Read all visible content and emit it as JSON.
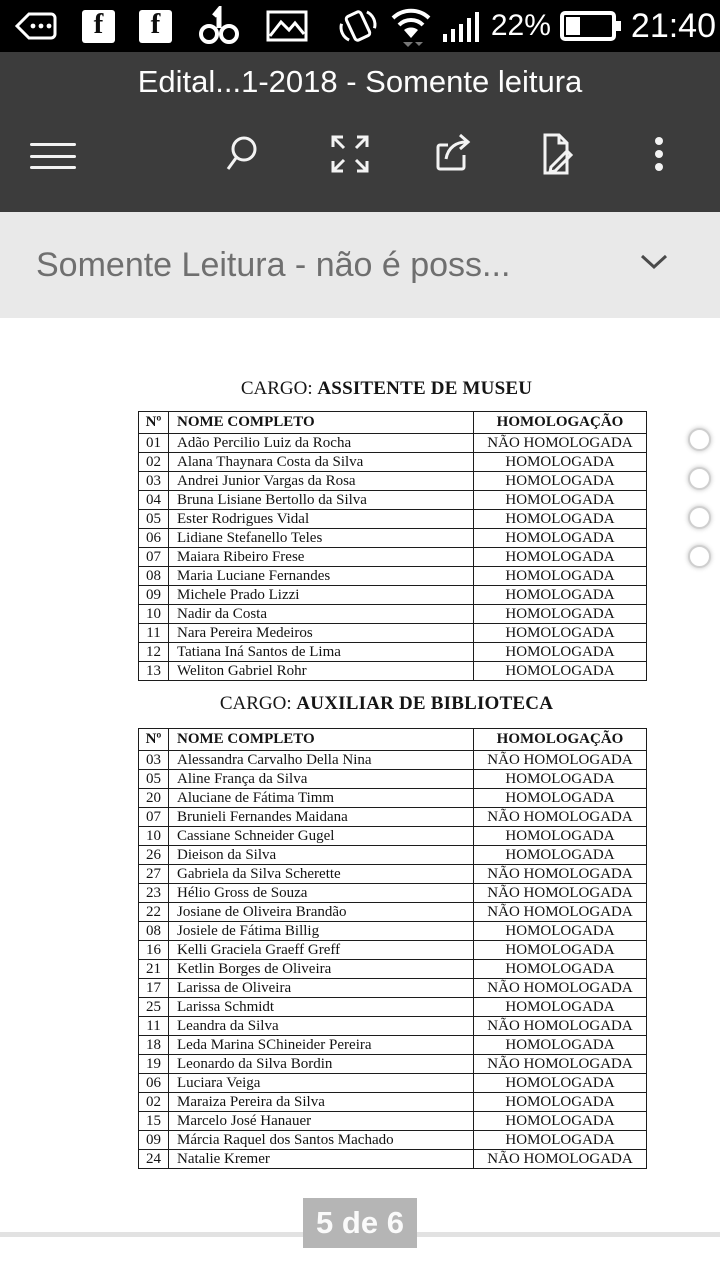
{
  "status_bar": {
    "time": "21:40",
    "battery_percent": "22%",
    "icons_left": [
      "tag-icon",
      "facebook-icon",
      "facebook-icon",
      "notification-app-icon",
      "gallery-icon"
    ],
    "icons_right": [
      "vibrate-icon",
      "wifi-icon",
      "signal-strength-icon",
      "battery-icon"
    ]
  },
  "app_bar": {
    "title": "Edital...1-2018 - Somente leitura",
    "toolbar": {
      "menu": "menu",
      "search": "search",
      "fullscreen": "fullscreen",
      "share": "share",
      "edit": "edit",
      "more": "more-options"
    }
  },
  "banner": {
    "text": "Somente Leitura - não é poss..."
  },
  "document": {
    "sections": [
      {
        "heading_prefix": "CARGO: ",
        "heading": "ASSITENTE DE MUSEU",
        "columns": [
          "Nº",
          "NOME COMPLETO",
          "HOMOLOGAÇÃO"
        ],
        "rows": [
          [
            "01",
            "Adão Percilio Luiz da Rocha",
            "NÃO HOMOLOGADA"
          ],
          [
            "02",
            "Alana Thaynara Costa da Silva",
            "HOMOLOGADA"
          ],
          [
            "03",
            "Andrei Junior Vargas da Rosa",
            "HOMOLOGADA"
          ],
          [
            "04",
            "Bruna Lisiane Bertollo da Silva",
            "HOMOLOGADA"
          ],
          [
            "05",
            "Ester Rodrigues Vidal",
            "HOMOLOGADA"
          ],
          [
            "06",
            "Lidiane Stefanello Teles",
            "HOMOLOGADA"
          ],
          [
            "07",
            "Maiara Ribeiro Frese",
            "HOMOLOGADA"
          ],
          [
            "08",
            "Maria Luciane Fernandes",
            "HOMOLOGADA"
          ],
          [
            "09",
            "Michele Prado Lizzi",
            "HOMOLOGADA"
          ],
          [
            "10",
            "Nadir da Costa",
            "HOMOLOGADA"
          ],
          [
            "11",
            "Nara Pereira Medeiros",
            "HOMOLOGADA"
          ],
          [
            "12",
            "Tatiana Iná Santos de Lima",
            "HOMOLOGADA"
          ],
          [
            "13",
            "Weliton Gabriel Rohr",
            "HOMOLOGADA"
          ]
        ]
      },
      {
        "heading_prefix": "CARGO: ",
        "heading": "AUXILIAR DE BIBLIOTECA",
        "columns": [
          "Nº",
          "NOME COMPLETO",
          "HOMOLOGAÇÃO"
        ],
        "rows": [
          [
            "03",
            "Alessandra Carvalho Della Nina",
            "NÃO HOMOLOGADA"
          ],
          [
            "05",
            "Aline França da Silva",
            "HOMOLOGADA"
          ],
          [
            "20",
            "Aluciane de Fátima Timm",
            "HOMOLOGADA"
          ],
          [
            "07",
            "Brunieli Fernandes Maidana",
            "NÃO HOMOLOGADA"
          ],
          [
            "10",
            "Cassiane Schneider Gugel",
            "HOMOLOGADA"
          ],
          [
            "26",
            "Dieison da Silva",
            "HOMOLOGADA"
          ],
          [
            "27",
            "Gabriela da Silva Scherette",
            "NÃO HOMOLOGADA"
          ],
          [
            "23",
            "Hélio Gross de Souza",
            "NÃO HOMOLOGADA"
          ],
          [
            "22",
            "Josiane de Oliveira Brandão",
            "NÃO HOMOLOGADA"
          ],
          [
            "08",
            "Josiele de Fátima Billig",
            "HOMOLOGADA"
          ],
          [
            "16",
            "Kelli Graciela Graeff Greff",
            "HOMOLOGADA"
          ],
          [
            "21",
            "Ketlin Borges de Oliveira",
            "HOMOLOGADA"
          ],
          [
            "17",
            "Larissa de Oliveira",
            "NÃO HOMOLOGADA"
          ],
          [
            "25",
            "Larissa Schmidt",
            "HOMOLOGADA"
          ],
          [
            "11",
            "Leandra da Silva",
            "NÃO HOMOLOGADA"
          ],
          [
            "18",
            "Leda Marina SChineider Pereira",
            "HOMOLOGADA"
          ],
          [
            "19",
            "Leonardo da Silva Bordin",
            "NÃO HOMOLOGADA"
          ],
          [
            "06",
            "Luciara Veiga",
            "HOMOLOGADA"
          ],
          [
            "02",
            "Maraiza Pereira da Silva",
            "HOMOLOGADA"
          ],
          [
            "15",
            "Marcelo José Hanauer",
            "HOMOLOGADA"
          ],
          [
            "09",
            "Márcia Raquel dos Santos Machado",
            "HOMOLOGADA"
          ],
          [
            "24",
            "Natalie Kremer",
            "NÃO HOMOLOGADA"
          ]
        ]
      }
    ]
  },
  "pager": {
    "label": "5 de 6"
  },
  "colors": {
    "status_bar_bg": "#000000",
    "app_bar_bg": "#3c3c3c",
    "banner_bg": "#e9e9e9",
    "banner_text": "#6f6f6f",
    "pager_bg": "#b5b5b5",
    "document_bg": "#ffffff"
  }
}
